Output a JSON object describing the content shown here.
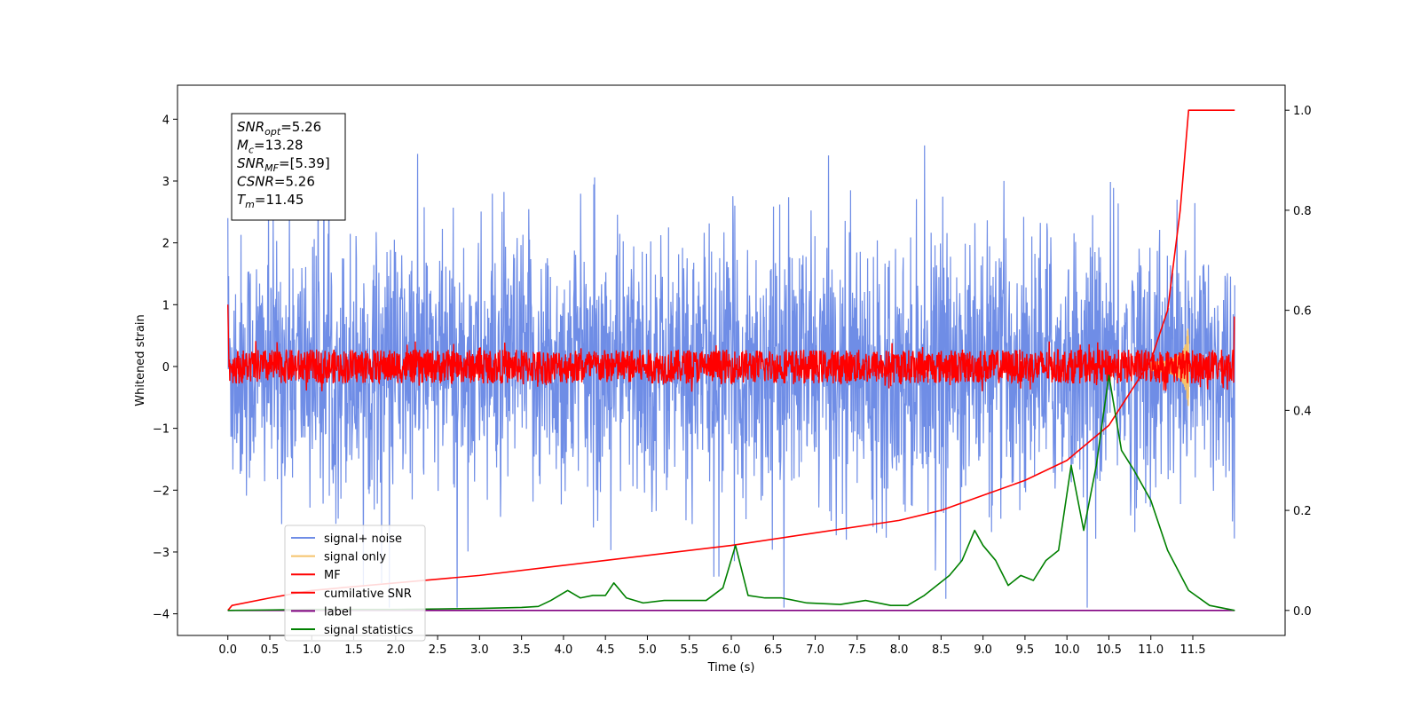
{
  "chart_data": {
    "type": "line",
    "xlabel": "Time (s)",
    "ylabel": "Whitened strain",
    "xlim": [
      -0.6,
      12.6
    ],
    "ylim_left": [
      -4.35,
      4.55
    ],
    "ylim_right": [
      -0.05,
      1.05
    ],
    "x_ticks": [
      "0.0",
      "0.5",
      "1.0",
      "1.5",
      "2.0",
      "2.5",
      "3.0",
      "3.5",
      "4.0",
      "4.5",
      "5.0",
      "5.5",
      "6.0",
      "6.5",
      "7.0",
      "7.5",
      "8.0",
      "8.5",
      "9.0",
      "9.5",
      "10.0",
      "10.5",
      "11.0",
      "11.5"
    ],
    "y_ticks_left": [
      "−4",
      "−3",
      "−2",
      "−1",
      "0",
      "1",
      "2",
      "3",
      "4"
    ],
    "y_ticks_right": [
      "0.0",
      "0.2",
      "0.4",
      "0.6",
      "0.8",
      "1.0"
    ],
    "legend_position": "lower-left",
    "series": [
      {
        "name": "signal+ noise",
        "color": "#6f8de6",
        "axis": "left",
        "description_range": [
          -2.0,
          2.0
        ],
        "peak_range": [
          -3.9,
          4.2
        ],
        "t_range": [
          0.0,
          12.0
        ]
      },
      {
        "name": "signal only",
        "color": "#f5c36b",
        "axis": "left",
        "chirp_center": 11.45,
        "peak_amplitude": 0.9
      },
      {
        "name": "MF",
        "color": "#ff0000",
        "axis": "left",
        "range": [
          -0.3,
          0.35
        ]
      },
      {
        "name": "cumilative SNR",
        "color": "#ff0000",
        "axis": "right",
        "x": [
          0.0,
          0.05,
          0.5,
          1.0,
          2.0,
          3.0,
          4.0,
          5.0,
          6.0,
          7.0,
          8.0,
          8.5,
          9.0,
          9.5,
          10.0,
          10.5,
          11.0,
          11.2,
          11.35,
          11.45,
          12.0
        ],
        "y": [
          0.0,
          0.01,
          0.025,
          0.04,
          0.055,
          0.07,
          0.09,
          0.11,
          0.13,
          0.155,
          0.18,
          0.2,
          0.23,
          0.26,
          0.3,
          0.37,
          0.5,
          0.6,
          0.8,
          1.0,
          1.0
        ]
      },
      {
        "name": "label",
        "color": "#800080",
        "axis": "right",
        "x": [
          0.0,
          12.0
        ],
        "y": [
          0.0,
          0.0
        ]
      },
      {
        "name": "signal statistics",
        "color": "#008000",
        "axis": "right",
        "x": [
          0.0,
          0.5,
          1.0,
          1.5,
          2.0,
          2.5,
          3.0,
          3.5,
          3.7,
          3.85,
          3.95,
          4.05,
          4.2,
          4.35,
          4.5,
          4.6,
          4.75,
          4.95,
          5.2,
          5.45,
          5.7,
          5.9,
          6.05,
          6.2,
          6.4,
          6.6,
          6.9,
          7.3,
          7.6,
          7.9,
          8.1,
          8.3,
          8.45,
          8.6,
          8.75,
          8.9,
          9.0,
          9.15,
          9.3,
          9.45,
          9.6,
          9.75,
          9.9,
          10.05,
          10.2,
          10.35,
          10.5,
          10.65,
          10.8,
          11.0,
          11.2,
          11.45,
          11.7,
          12.0
        ],
        "y": [
          0.0,
          0.001,
          0.002,
          0.002,
          0.002,
          0.003,
          0.004,
          0.006,
          0.008,
          0.02,
          0.03,
          0.04,
          0.025,
          0.03,
          0.03,
          0.055,
          0.025,
          0.015,
          0.02,
          0.02,
          0.02,
          0.045,
          0.13,
          0.03,
          0.025,
          0.025,
          0.015,
          0.012,
          0.02,
          0.01,
          0.01,
          0.03,
          0.05,
          0.07,
          0.1,
          0.16,
          0.13,
          0.1,
          0.05,
          0.07,
          0.06,
          0.1,
          0.12,
          0.29,
          0.16,
          0.29,
          0.47,
          0.32,
          0.28,
          0.22,
          0.12,
          0.04,
          0.01,
          0.0
        ]
      }
    ]
  },
  "annotation": {
    "lines": [
      {
        "sym": "SNR",
        "sub": "opt",
        "value": "=5.26"
      },
      {
        "sym": "M",
        "sub": "c",
        "value": "=13.28"
      },
      {
        "sym": "SNR",
        "sub": "MF",
        "value": "=[5.39]"
      },
      {
        "sym": "CSNR",
        "sub": "",
        "value": "=5.26"
      },
      {
        "sym": "T",
        "sub": "m",
        "value": "=11.45"
      }
    ]
  }
}
